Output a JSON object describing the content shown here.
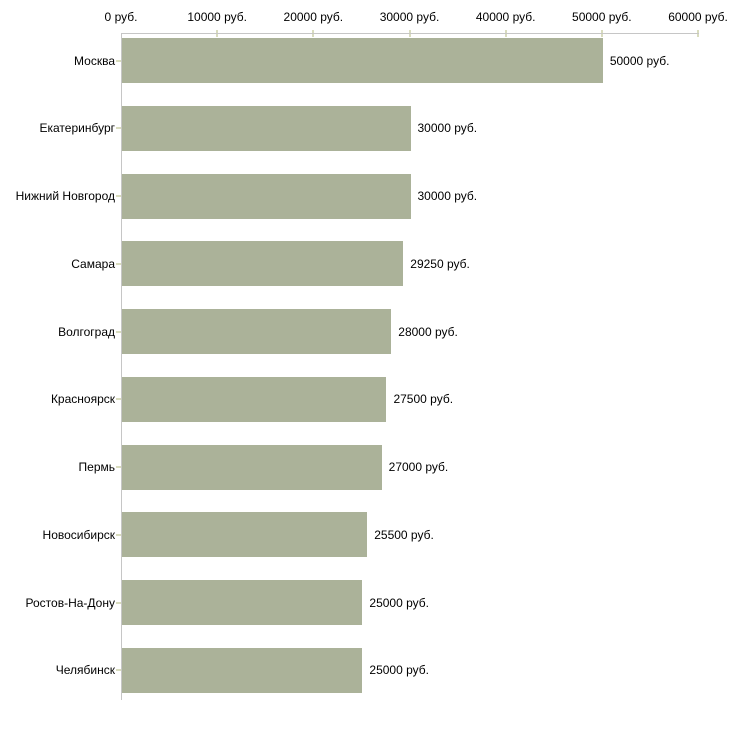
{
  "chart_data": {
    "type": "bar",
    "orientation": "horizontal",
    "title": "",
    "xlabel": "",
    "ylabel": "",
    "categories": [
      "Москва",
      "Екатеринбург",
      "Нижний Новгород",
      "Самара",
      "Волгоград",
      "Красноярск",
      "Пермь",
      "Новосибирск",
      "Ростов-На-Дону",
      "Челябинск"
    ],
    "values": [
      50000,
      30000,
      30000,
      29250,
      28000,
      27500,
      27000,
      25500,
      25000,
      25000
    ],
    "values_formatted": [
      "50000 руб.",
      "30000 руб.",
      "30000 руб.",
      "29250 руб.",
      "28000 руб.",
      "27500 руб.",
      "27000 руб.",
      "25500 руб.",
      "25000 руб.",
      "25000 руб."
    ],
    "x_ticks": [
      {
        "value": 0,
        "label": "0 руб."
      },
      {
        "value": 10000,
        "label": "10000 руб."
      },
      {
        "value": 20000,
        "label": "20000 руб."
      },
      {
        "value": 30000,
        "label": "30000 руб."
      },
      {
        "value": 40000,
        "label": "40000 руб."
      },
      {
        "value": 50000,
        "label": "50000 руб."
      },
      {
        "value": 60000,
        "label": "60000 руб."
      }
    ],
    "xlim": [
      0,
      60000
    ],
    "grid": false,
    "legend": false,
    "unit": "руб.",
    "colors": {
      "bar": "#abb299",
      "tick_mark": "#d9dcbe",
      "axis": "#c6c6c6",
      "text": "#000000",
      "background": "#ffffff"
    }
  }
}
